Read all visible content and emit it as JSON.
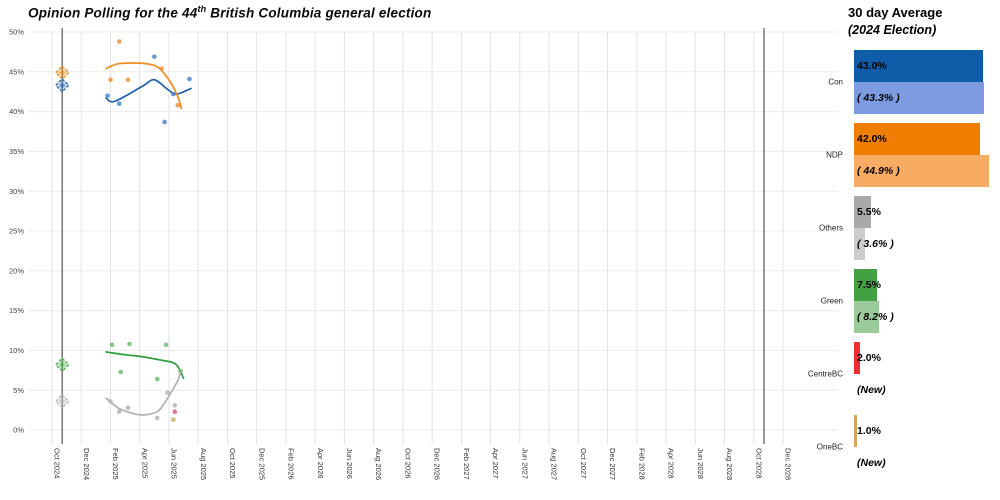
{
  "header": {
    "title_prefix": "Opinion Polling for the 44",
    "title_superscript": "th",
    "title_suffix": " British Columbia general election"
  },
  "chart_data": {
    "type": "scatter",
    "title": "Opinion Polling for the 44th British Columbia general election",
    "x_axis": {
      "labels": [
        "Oct 2024",
        "Dec 2024",
        "Feb 2025",
        "Apr 2025",
        "Jun 2025",
        "Aug 2025",
        "Oct 2025",
        "Dec 2025",
        "Feb 2026",
        "Apr 2026",
        "Jun 2026",
        "Aug 2026",
        "Oct 2026",
        "Dec 2026",
        "Feb 2027",
        "Apr 2027",
        "Jun 2027",
        "Aug 2027",
        "Oct 2027",
        "Dec 2027",
        "Feb 2028",
        "Apr 2028",
        "Jun 2028",
        "Aug 2028",
        "Oct 2028",
        "Dec 2028"
      ],
      "months_per_label": 2,
      "start": "Oct 2024",
      "end": "Dec 2028"
    },
    "y_axis": {
      "labels": [
        "0%",
        "5%",
        "10%",
        "15%",
        "20%",
        "25%",
        "30%",
        "35%",
        "40%",
        "45%",
        "50%"
      ],
      "min": 0,
      "max": 50,
      "step": 5,
      "unit": "%",
      "grid": true
    },
    "election_lines": [
      {
        "name": "2024-election",
        "month": 0.7
      },
      {
        "name": "2028-election",
        "month": 48.7
      }
    ],
    "series": [
      {
        "name": "Conservative",
        "trend_color": "#1f5fae",
        "point_color": "#4d86c8",
        "points": [
          [
            3.8,
            42
          ],
          [
            4.6,
            41
          ],
          [
            7.0,
            46.9
          ],
          [
            7.7,
            38.7
          ],
          [
            8.3,
            42.2
          ],
          [
            9.4,
            44.1
          ]
        ],
        "trend": [
          [
            3.7,
            41.7
          ],
          [
            4.3,
            41.3
          ],
          [
            6.2,
            43.2
          ],
          [
            7.0,
            44.0
          ],
          [
            7.9,
            42.8
          ],
          [
            8.5,
            42.2
          ],
          [
            9.5,
            42.9
          ]
        ]
      },
      {
        "name": "NDP",
        "trend_color": "#f08c1e",
        "point_color": "#f0913c",
        "points": [
          [
            4.0,
            44
          ],
          [
            4.6,
            48.8
          ],
          [
            5.2,
            44
          ],
          [
            7.5,
            45.4
          ],
          [
            8.6,
            40.8
          ]
        ],
        "trend": [
          [
            3.7,
            45.4
          ],
          [
            4.5,
            46.0
          ],
          [
            5.5,
            46.1
          ],
          [
            6.5,
            46.0
          ],
          [
            7.3,
            45.5
          ],
          [
            8.1,
            43.7
          ],
          [
            8.6,
            41.9
          ],
          [
            8.85,
            40.4
          ]
        ]
      },
      {
        "name": "Green",
        "trend_color": "#2f9e3f",
        "point_color": "#72b872",
        "points": [
          [
            4.1,
            10.7
          ],
          [
            4.7,
            7.3
          ],
          [
            5.3,
            10.8
          ],
          [
            7.2,
            6.4
          ],
          [
            7.8,
            10.7
          ],
          [
            8.8,
            7.4
          ]
        ],
        "trend": [
          [
            3.7,
            9.8
          ],
          [
            4.8,
            9.5
          ],
          [
            6.2,
            9.2
          ],
          [
            7.4,
            8.8
          ],
          [
            8.2,
            8.5
          ],
          [
            8.6,
            8.0
          ],
          [
            9.0,
            6.5
          ]
        ]
      },
      {
        "name": "Others",
        "trend_color": "#b0b0b0",
        "point_color": "#b5b5b5",
        "points": [
          [
            4.0,
            3.6
          ],
          [
            4.6,
            2.3
          ],
          [
            5.2,
            2.8
          ],
          [
            7.2,
            1.5
          ],
          [
            7.9,
            4.7
          ],
          [
            8.4,
            3.1
          ]
        ],
        "trend": [
          [
            3.7,
            4.0
          ],
          [
            4.5,
            2.8
          ],
          [
            5.5,
            2.1
          ],
          [
            6.3,
            1.9
          ],
          [
            7.2,
            2.3
          ],
          [
            7.7,
            3.4
          ],
          [
            8.2,
            4.9
          ],
          [
            8.6,
            6.2
          ],
          [
            8.8,
            7.3
          ]
        ]
      },
      {
        "name": "CentreBC",
        "trend_color": "#e2697a",
        "point_color": "#d6627f",
        "points": [
          [
            8.4,
            2.3
          ]
        ],
        "trend": []
      },
      {
        "name": "OneBC",
        "trend_color": "#c4b468",
        "point_color": "#c4b468",
        "points": [
          [
            8.3,
            1.3
          ]
        ],
        "trend": []
      }
    ],
    "election_2024_results": [
      {
        "party": "NDP",
        "value": 44.9,
        "color": "#f08c1e"
      },
      {
        "party": "Conservative",
        "value": 43.3,
        "color": "#2e6db4"
      },
      {
        "party": "Green",
        "value": 8.2,
        "color": "#4caf50"
      },
      {
        "party": "Others",
        "value": 3.6,
        "color": "#b5b5b5"
      }
    ]
  },
  "panel": {
    "title": "30 day Average",
    "subtitle": "(2024 Election)",
    "parties": [
      {
        "name": "Con",
        "avg_label": "43.0%",
        "avg": 43.0,
        "color": "#0f5ca8",
        "election_label": "( 43.3% )",
        "election": 43.3,
        "light_color": "#7d9be0"
      },
      {
        "name": "NDP",
        "avg_label": "42.0%",
        "avg": 42.0,
        "color": "#ef7d00",
        "election_label": "( 44.9% )",
        "election": 44.9,
        "light_color": "#f8ab62"
      },
      {
        "name": "Others",
        "avg_label": "5.5%",
        "avg": 5.5,
        "color": "#a9a9a9",
        "election_label": "( 3.6% )",
        "election": 3.6,
        "light_color": "#cccccc"
      },
      {
        "name": "Green",
        "avg_label": "7.5%",
        "avg": 7.5,
        "color": "#43a143",
        "election_label": "( 8.2% )",
        "election": 8.2,
        "light_color": "#9bcb9b"
      },
      {
        "name": "CentreBC",
        "avg_label": "2.0%",
        "avg": 2.0,
        "color": "#ee2e31",
        "election_label": "(New)",
        "election": null,
        "light_color": null
      },
      {
        "name": "OneBC",
        "avg_label": "1.0%",
        "avg": 1.0,
        "color": "#d2a45f",
        "election_label": "(New)",
        "election": null,
        "light_color": null
      }
    ]
  }
}
